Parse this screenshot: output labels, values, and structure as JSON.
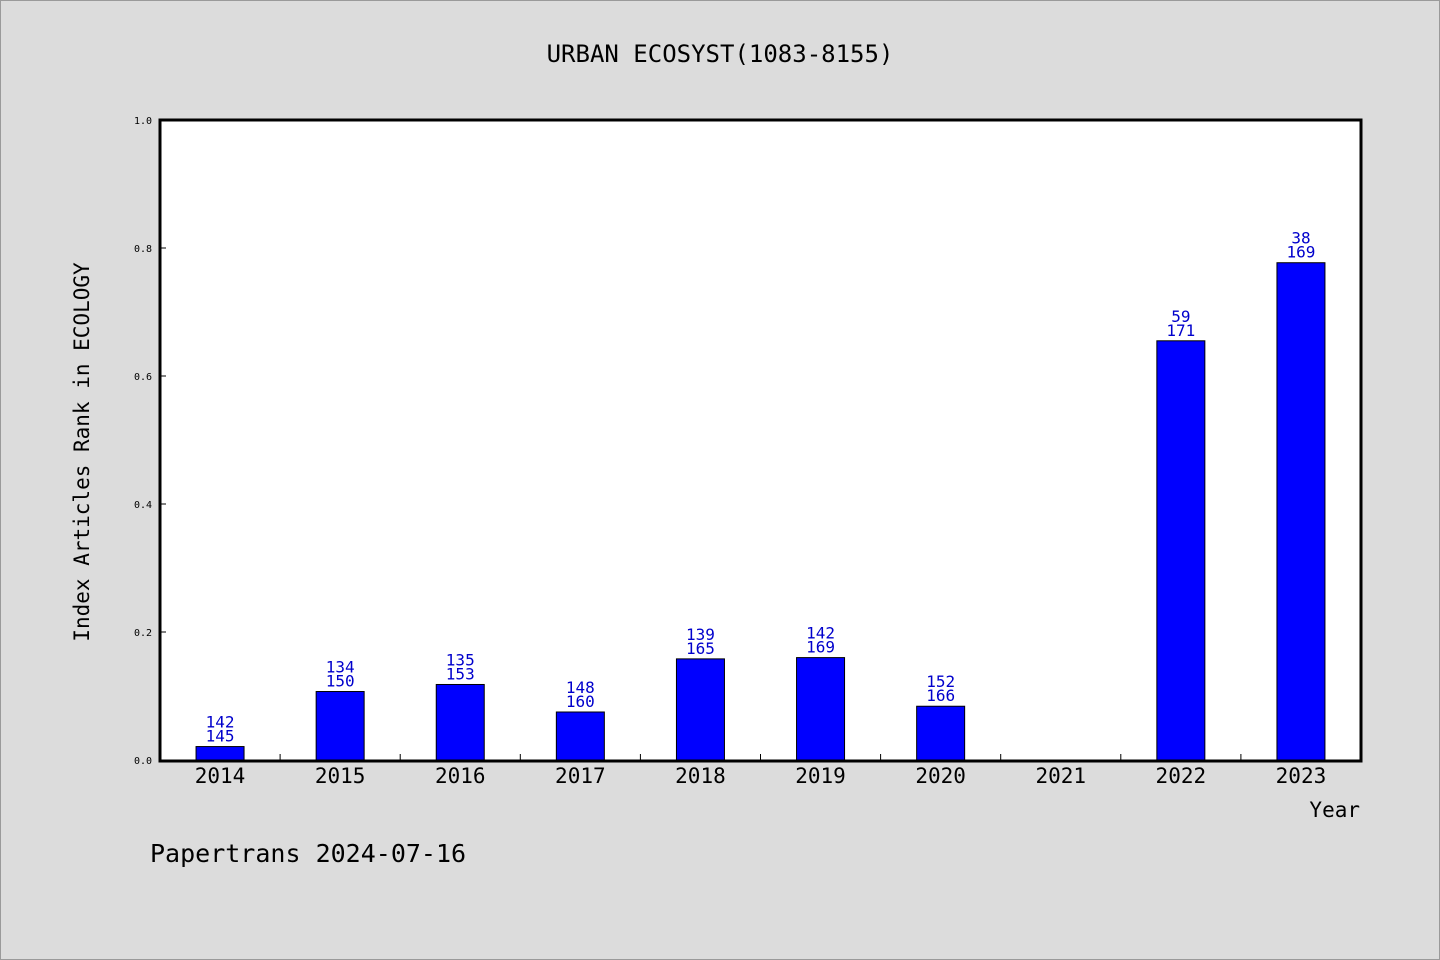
{
  "chart_data": {
    "type": "bar",
    "title": "URBAN ECOSYST(1083-8155)",
    "xlabel": "Year",
    "ylabel": "Index Articles Rank in ECOLOGY",
    "ylim": [
      0,
      1.0
    ],
    "yticks": [
      "0.0",
      "0.2",
      "0.4",
      "0.6",
      "0.8",
      "1.0"
    ],
    "categories": [
      "2014",
      "2015",
      "2016",
      "2017",
      "2018",
      "2019",
      "2020",
      "2021",
      "2022",
      "2023"
    ],
    "values": [
      0.021,
      0.107,
      0.118,
      0.075,
      0.158,
      0.16,
      0.084,
      null,
      0.655,
      0.777
    ],
    "labels": [
      [
        "142",
        "145"
      ],
      [
        "134",
        "150"
      ],
      [
        "135",
        "153"
      ],
      [
        "148",
        "160"
      ],
      [
        "139",
        "165"
      ],
      [
        "142",
        "169"
      ],
      [
        "152",
        "166"
      ],
      null,
      [
        "59",
        "171"
      ],
      [
        "38",
        "169"
      ]
    ],
    "bar_color": "#0000ff",
    "label_color": "#0000cc",
    "grid": false,
    "legend": "none"
  },
  "footer": "Papertrans 2024-07-16"
}
